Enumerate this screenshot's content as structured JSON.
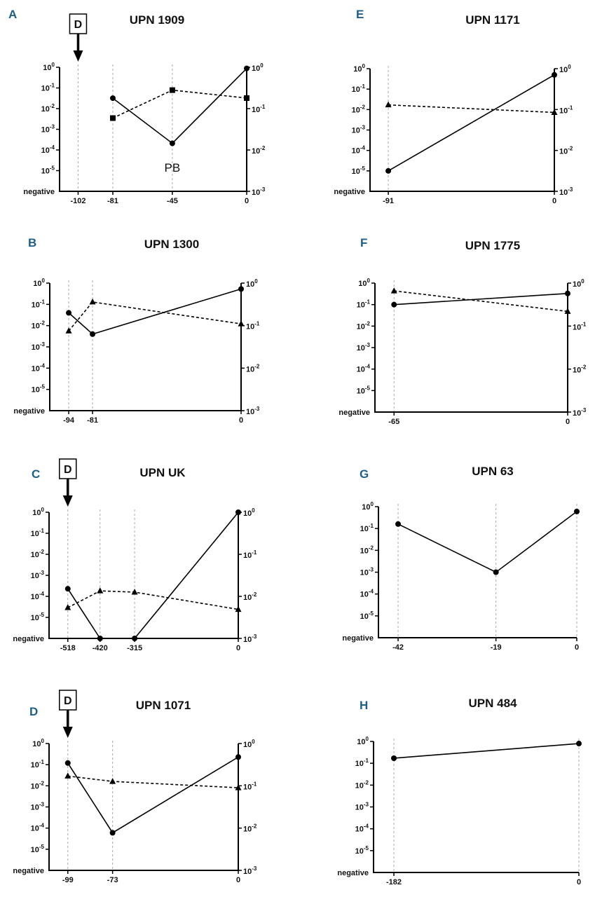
{
  "axes": {
    "left_ticks": [
      {
        "base": "10",
        "exp": "0"
      },
      {
        "base": "10",
        "exp": "-1"
      },
      {
        "base": "10",
        "exp": "-2"
      },
      {
        "base": "10",
        "exp": "-3"
      },
      {
        "base": "10",
        "exp": "-4"
      },
      {
        "base": "10",
        "exp": "-5"
      }
    ],
    "left_bottom_label": "negative",
    "right_ticks": [
      {
        "base": "10",
        "exp": "0"
      },
      {
        "base": "10",
        "exp": "-1"
      },
      {
        "base": "10",
        "exp": "-2"
      },
      {
        "base": "10",
        "exp": "-3"
      }
    ]
  },
  "chart_data": [
    {
      "panel": "A",
      "title": "UPN 1909",
      "type": "line",
      "x_ticks": [
        -102,
        -81,
        -45,
        0
      ],
      "has_right_axis": true,
      "marker": {
        "label": "D",
        "x": -102
      },
      "annotation": {
        "text": "PB",
        "x": -45
      },
      "series": [
        {
          "name": "solid-circle",
          "axis": "left",
          "style": "solid",
          "symbol": "circle",
          "x": [
            -81,
            -45,
            0
          ],
          "y": [
            0.032,
            0.00021,
            0.88
          ]
        },
        {
          "name": "dashed-square",
          "axis": "right",
          "style": "dashed",
          "symbol": "square",
          "x": [
            -81,
            -45,
            0
          ],
          "y": [
            0.059,
            0.28,
            0.18
          ]
        }
      ]
    },
    {
      "panel": "B",
      "title": "UPN 1300",
      "type": "line",
      "x_ticks": [
        -94,
        -81,
        0
      ],
      "has_right_axis": true,
      "series": [
        {
          "name": "solid-circle",
          "axis": "left",
          "style": "solid",
          "symbol": "circle",
          "x": [
            -94,
            -81,
            0
          ],
          "y": [
            0.04,
            0.004,
            0.53
          ]
        },
        {
          "name": "dashed-triangle",
          "axis": "right",
          "style": "dashed",
          "symbol": "triangle",
          "x": [
            -94,
            -81,
            0
          ],
          "y": [
            0.075,
            0.36,
            0.11
          ]
        }
      ]
    },
    {
      "panel": "C",
      "title": "UPN UK",
      "type": "line",
      "x_ticks": [
        -518,
        -420,
        -315,
        0
      ],
      "has_right_axis": true,
      "marker": {
        "label": "D",
        "x": -518
      },
      "series": [
        {
          "name": "solid-circle",
          "axis": "left",
          "style": "solid",
          "symbol": "circle",
          "x": [
            -518,
            -420,
            -315,
            0
          ],
          "y": [
            0.00023,
            "negative",
            "negative",
            1.0
          ]
        },
        {
          "name": "dashed-triangle",
          "axis": "right",
          "style": "dashed",
          "symbol": "triangle",
          "x": [
            -518,
            -420,
            -315,
            0
          ],
          "y": [
            0.0054,
            0.0135,
            0.0126,
            0.0049
          ]
        }
      ]
    },
    {
      "panel": "D",
      "title": "UPN 1071",
      "type": "line",
      "x_ticks": [
        -99,
        -73,
        0
      ],
      "has_right_axis": true,
      "marker": {
        "label": "D",
        "x": -99
      },
      "series": [
        {
          "name": "solid-circle",
          "axis": "left",
          "style": "solid",
          "symbol": "circle",
          "x": [
            -99,
            -73,
            0
          ],
          "y": [
            0.12,
            6e-05,
            0.23
          ]
        },
        {
          "name": "dashed-triangle",
          "axis": "right",
          "style": "dashed",
          "symbol": "triangle",
          "x": [
            -99,
            -73,
            0
          ],
          "y": [
            0.17,
            0.127,
            0.09
          ]
        }
      ]
    },
    {
      "panel": "E",
      "title": "UPN 1171",
      "type": "line",
      "x_ticks": [
        -91,
        0
      ],
      "has_right_axis": true,
      "series": [
        {
          "name": "solid-circle",
          "axis": "left",
          "style": "solid",
          "symbol": "circle",
          "x": [
            -91,
            0
          ],
          "y": [
            1e-05,
            0.5
          ]
        },
        {
          "name": "dashed-triangle",
          "axis": "right",
          "style": "dashed",
          "symbol": "triangle",
          "x": [
            -91,
            0
          ],
          "y": [
            0.13,
            0.085
          ]
        }
      ]
    },
    {
      "panel": "F",
      "title": "UPN 1775",
      "type": "line",
      "x_ticks": [
        -65,
        0
      ],
      "has_right_axis": true,
      "series": [
        {
          "name": "solid-circle",
          "axis": "left",
          "style": "solid",
          "symbol": "circle",
          "x": [
            -65,
            0
          ],
          "y": [
            0.1,
            0.33
          ]
        },
        {
          "name": "dashed-triangle",
          "axis": "right",
          "style": "dashed",
          "symbol": "triangle",
          "x": [
            -65,
            0
          ],
          "y": [
            0.66,
            0.22
          ]
        }
      ]
    },
    {
      "panel": "G",
      "title": "UPN 63",
      "type": "line",
      "x_ticks": [
        -42,
        -19,
        0
      ],
      "has_right_axis": false,
      "series": [
        {
          "name": "solid-circle",
          "axis": "left",
          "style": "solid",
          "symbol": "circle",
          "x": [
            -42,
            -19,
            0
          ],
          "y": [
            0.16,
            0.001,
            0.6
          ]
        }
      ]
    },
    {
      "panel": "H",
      "title": "UPN 484",
      "type": "line",
      "x_ticks": [
        -182,
        0
      ],
      "has_right_axis": false,
      "series": [
        {
          "name": "solid-circle",
          "axis": "left",
          "style": "solid",
          "symbol": "circle",
          "x": [
            -182,
            0
          ],
          "y": [
            0.17,
            0.8
          ]
        }
      ]
    }
  ]
}
